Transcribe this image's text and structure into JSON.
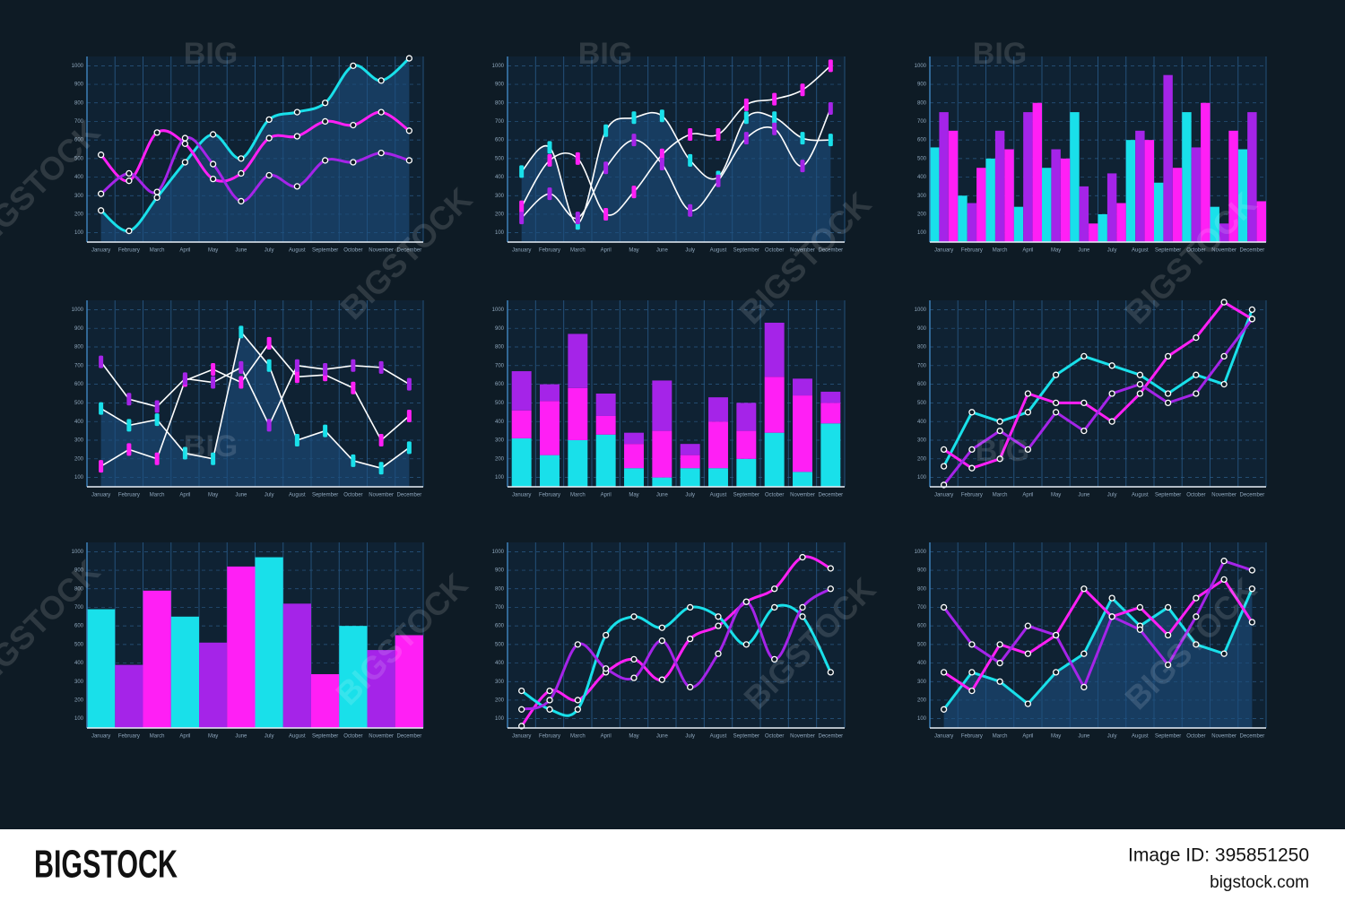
{
  "chart_data": [
    {
      "type": "line",
      "smooth": true,
      "area": true,
      "marker": "dot",
      "categories": [
        "January",
        "February",
        "March",
        "April",
        "May",
        "June",
        "July",
        "August",
        "September",
        "October",
        "November",
        "December"
      ],
      "ylim": [
        50,
        1050
      ],
      "yticks": [
        100,
        200,
        300,
        400,
        500,
        600,
        700,
        800,
        900,
        1000
      ],
      "grid": true,
      "series": [
        {
          "color": "#19e0ea",
          "values": [
            220,
            110,
            290,
            480,
            630,
            500,
            710,
            750,
            800,
            1000,
            920,
            1040
          ]
        },
        {
          "color": "#ff1ff5",
          "values": [
            520,
            380,
            640,
            580,
            390,
            420,
            610,
            620,
            700,
            680,
            750,
            650
          ]
        },
        {
          "color": "#a524e8",
          "values": [
            310,
            420,
            320,
            610,
            470,
            270,
            410,
            350,
            490,
            480,
            530,
            490
          ]
        }
      ]
    },
    {
      "type": "line",
      "smooth": true,
      "area": true,
      "marker": "candle",
      "line_color": "#ffffff",
      "categories": [
        "January",
        "February",
        "March",
        "April",
        "May",
        "June",
        "July",
        "August",
        "September",
        "October",
        "November",
        "December"
      ],
      "ylim": [
        50,
        1050
      ],
      "yticks": [
        100,
        200,
        300,
        400,
        500,
        600,
        700,
        800,
        900,
        1000
      ],
      "grid": true,
      "series": [
        {
          "color": "#19e0ea",
          "values": [
            430,
            560,
            150,
            650,
            720,
            730,
            490,
            400,
            720,
            720,
            610,
            600
          ]
        },
        {
          "color": "#ff1ff5",
          "values": [
            240,
            490,
            500,
            200,
            320,
            520,
            630,
            630,
            790,
            820,
            870,
            1000
          ]
        },
        {
          "color": "#a524e8",
          "values": [
            180,
            310,
            180,
            450,
            600,
            470,
            220,
            380,
            610,
            660,
            460,
            770
          ]
        }
      ]
    },
    {
      "type": "bar",
      "categories": [
        "January",
        "February",
        "March",
        "April",
        "May",
        "June",
        "July",
        "August",
        "September",
        "October",
        "November",
        "December"
      ],
      "ylim": [
        50,
        1050
      ],
      "yticks": [
        100,
        200,
        300,
        400,
        500,
        600,
        700,
        800,
        900,
        1000
      ],
      "grid": true,
      "series": [
        {
          "color": "#19e0ea",
          "values": [
            560,
            300,
            500,
            240,
            450,
            750,
            200,
            600,
            370,
            750,
            240,
            550
          ]
        },
        {
          "color": "#a524e8",
          "values": [
            750,
            260,
            650,
            750,
            550,
            350,
            420,
            650,
            950,
            560,
            150,
            750
          ]
        },
        {
          "color": "#ff1ff5",
          "values": [
            650,
            450,
            550,
            800,
            500,
            150,
            260,
            600,
            450,
            800,
            650,
            270
          ]
        }
      ]
    },
    {
      "type": "line",
      "smooth": false,
      "area": true,
      "marker": "candle",
      "line_color": "#ffffff",
      "categories": [
        "January",
        "February",
        "March",
        "April",
        "May",
        "June",
        "July",
        "August",
        "September",
        "October",
        "November",
        "December"
      ],
      "ylim": [
        50,
        1050
      ],
      "yticks": [
        100,
        200,
        300,
        400,
        500,
        600,
        700,
        800,
        900,
        1000
      ],
      "grid": true,
      "series": [
        {
          "color": "#19e0ea",
          "values": [
            470,
            380,
            410,
            230,
            200,
            880,
            700,
            300,
            350,
            190,
            150,
            260
          ]
        },
        {
          "color": "#ff1ff5",
          "values": [
            160,
            250,
            200,
            620,
            680,
            610,
            820,
            640,
            650,
            580,
            300,
            430
          ]
        },
        {
          "color": "#a524e8",
          "values": [
            720,
            520,
            480,
            630,
            610,
            690,
            380,
            700,
            680,
            700,
            690,
            600
          ]
        }
      ]
    },
    {
      "type": "bar",
      "stacked": true,
      "categories": [
        "January",
        "February",
        "March",
        "April",
        "May",
        "June",
        "July",
        "August",
        "September",
        "October",
        "November",
        "December"
      ],
      "ylim": [
        50,
        1050
      ],
      "yticks": [
        100,
        200,
        300,
        400,
        500,
        600,
        700,
        800,
        900,
        1000
      ],
      "grid": true,
      "series": [
        {
          "color": "#19e0ea",
          "values": [
            310,
            220,
            300,
            330,
            150,
            100,
            150,
            150,
            200,
            340,
            130,
            390
          ]
        },
        {
          "color": "#ff1ff5",
          "values": [
            150,
            290,
            280,
            100,
            130,
            250,
            70,
            250,
            150,
            300,
            410,
            110
          ]
        },
        {
          "color": "#a524e8",
          "values": [
            210,
            90,
            290,
            120,
            60,
            270,
            60,
            130,
            150,
            290,
            90,
            60
          ]
        }
      ]
    },
    {
      "type": "line",
      "smooth": false,
      "area": false,
      "marker": "dot",
      "categories": [
        "January",
        "February",
        "March",
        "April",
        "May",
        "June",
        "July",
        "August",
        "September",
        "October",
        "November",
        "December"
      ],
      "ylim": [
        50,
        1050
      ],
      "yticks": [
        100,
        200,
        300,
        400,
        500,
        600,
        700,
        800,
        900,
        1000
      ],
      "grid": true,
      "series": [
        {
          "color": "#19e0ea",
          "values": [
            160,
            450,
            400,
            450,
            650,
            750,
            700,
            650,
            550,
            650,
            600,
            1000
          ]
        },
        {
          "color": "#ff1ff5",
          "values": [
            250,
            150,
            200,
            550,
            500,
            500,
            400,
            550,
            750,
            850,
            1040,
            950
          ]
        },
        {
          "color": "#a524e8",
          "values": [
            60,
            250,
            350,
            250,
            450,
            350,
            550,
            600,
            500,
            550,
            750,
            950
          ]
        }
      ]
    },
    {
      "type": "bar",
      "categories": [
        "January",
        "February",
        "March",
        "April",
        "May",
        "June",
        "July",
        "August",
        "September",
        "October",
        "November",
        "December"
      ],
      "ylim": [
        50,
        1050
      ],
      "yticks": [
        100,
        200,
        300,
        400,
        500,
        600,
        700,
        800,
        900,
        1000
      ],
      "grid": true,
      "values": [
        690,
        390,
        790,
        650,
        510,
        920,
        970,
        720,
        340,
        600,
        470,
        550
      ],
      "colors": [
        "#19e0ea",
        "#a524e8",
        "#ff1ff5",
        "#19e0ea",
        "#a524e8",
        "#ff1ff5",
        "#19e0ea",
        "#a524e8",
        "#ff1ff5",
        "#19e0ea",
        "#a524e8",
        "#ff1ff5"
      ]
    },
    {
      "type": "line",
      "smooth": true,
      "area": false,
      "marker": "dot",
      "categories": [
        "January",
        "February",
        "March",
        "April",
        "May",
        "June",
        "July",
        "August",
        "September",
        "October",
        "November",
        "December"
      ],
      "ylim": [
        50,
        1050
      ],
      "yticks": [
        100,
        200,
        300,
        400,
        500,
        600,
        700,
        800,
        900,
        1000
      ],
      "grid": true,
      "series": [
        {
          "color": "#ff1ff5",
          "values": [
            60,
            250,
            200,
            350,
            420,
            310,
            530,
            600,
            730,
            800,
            970,
            910
          ]
        },
        {
          "color": "#19e0ea",
          "values": [
            250,
            150,
            150,
            550,
            650,
            590,
            700,
            650,
            500,
            700,
            650,
            350
          ]
        },
        {
          "color": "#a524e8",
          "values": [
            150,
            200,
            500,
            370,
            320,
            520,
            270,
            450,
            730,
            420,
            700,
            800
          ]
        }
      ]
    },
    {
      "type": "line",
      "smooth": false,
      "area": true,
      "marker": "dot",
      "categories": [
        "January",
        "February",
        "March",
        "April",
        "May",
        "June",
        "July",
        "August",
        "September",
        "October",
        "November",
        "December"
      ],
      "ylim": [
        50,
        1050
      ],
      "yticks": [
        100,
        200,
        300,
        400,
        500,
        600,
        700,
        800,
        900,
        1000
      ],
      "grid": true,
      "series": [
        {
          "color": "#19e0ea",
          "values": [
            150,
            350,
            300,
            180,
            350,
            450,
            750,
            600,
            700,
            500,
            450,
            800
          ]
        },
        {
          "color": "#ff1ff5",
          "values": [
            350,
            250,
            500,
            450,
            550,
            800,
            650,
            700,
            550,
            750,
            850,
            620
          ]
        },
        {
          "color": "#a524e8",
          "values": [
            700,
            500,
            400,
            600,
            550,
            270,
            650,
            580,
            390,
            650,
            950,
            900
          ]
        }
      ]
    }
  ],
  "watermarks": [
    "BIG",
    "BIGSTOCK"
  ],
  "footer": {
    "brand": "BIGSTOCK",
    "image_id": "Image ID: 395851250",
    "site": "bigstock.com"
  }
}
